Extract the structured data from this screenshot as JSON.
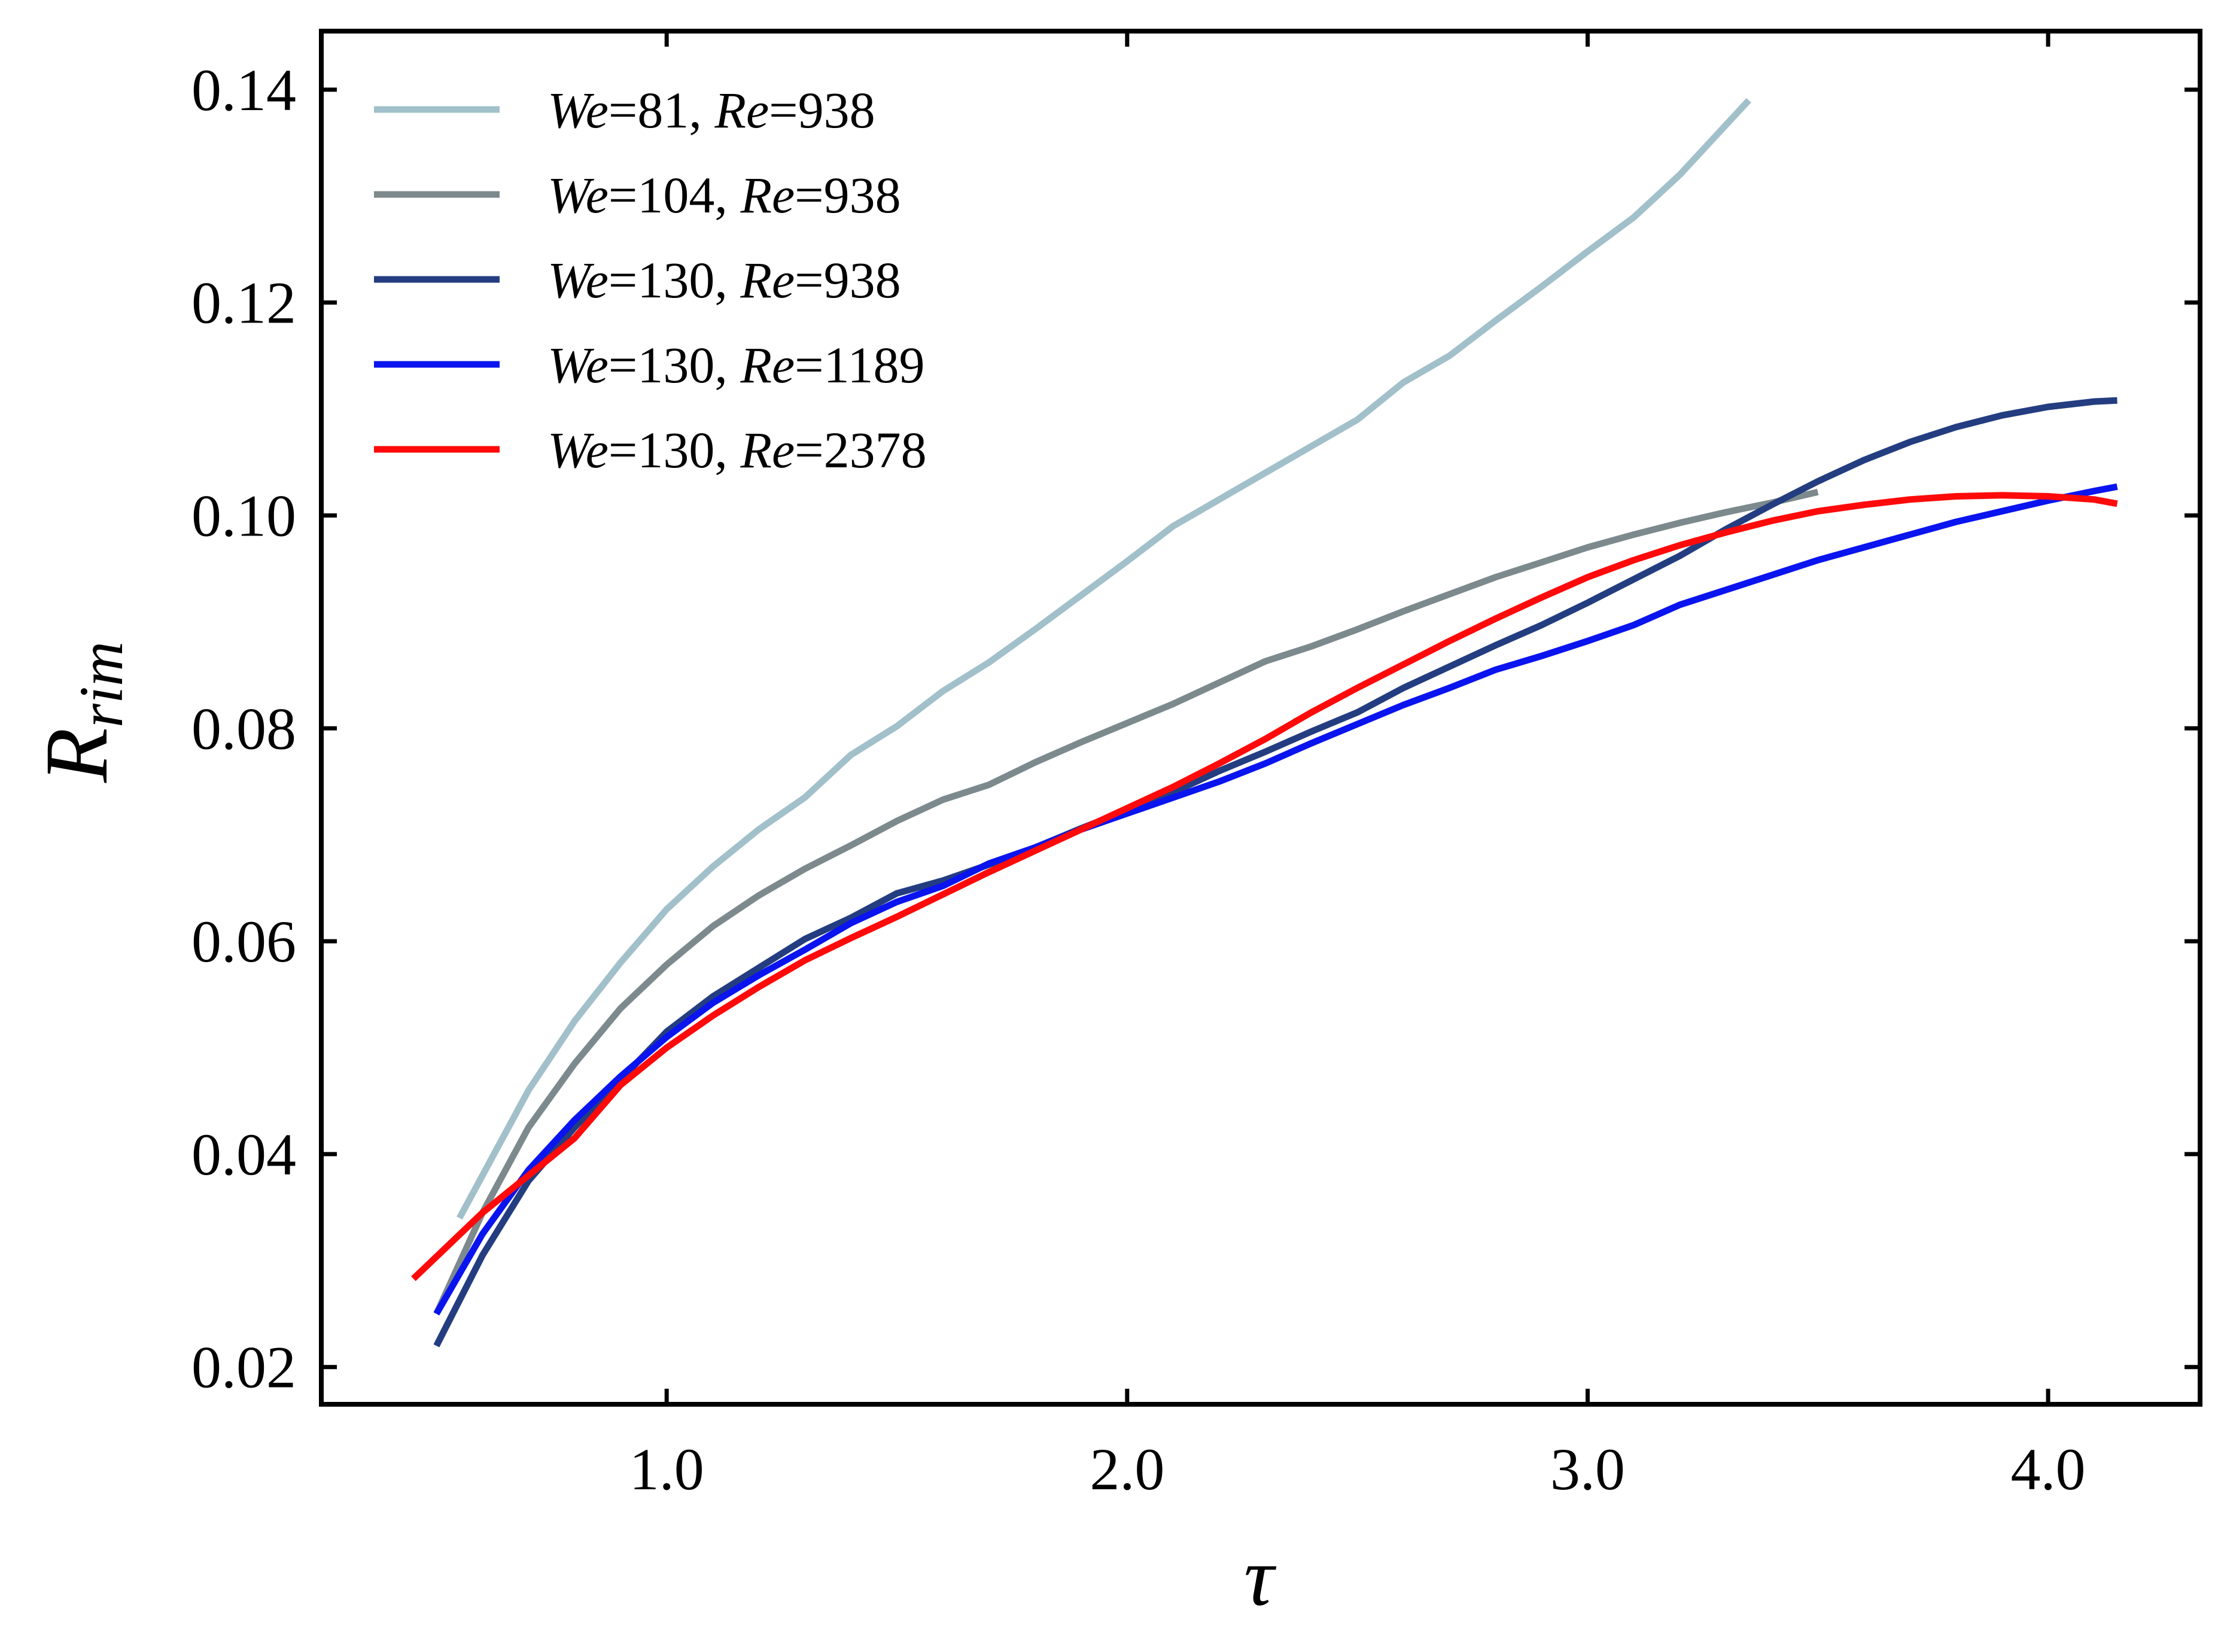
{
  "chart_data": {
    "type": "line",
    "xlabel": "τ",
    "ylabel": {
      "main": "R",
      "sub": "rim"
    },
    "xlim": [
      0.25,
      4.33
    ],
    "ylim": [
      0.0165,
      0.1455
    ],
    "xticks": [
      1.0,
      2.0,
      3.0,
      4.0
    ],
    "xtick_labels": [
      "1.0",
      "2.0",
      "3.0",
      "4.0"
    ],
    "yticks": [
      0.02,
      0.04,
      0.06,
      0.08,
      0.1,
      0.12,
      0.14
    ],
    "ytick_labels": [
      "0.02",
      "0.04",
      "0.06",
      "0.08",
      "0.10",
      "0.12",
      "0.14"
    ],
    "grid": false,
    "legend_position": "upper-left",
    "series": [
      {
        "name": "We = 81, Re = 938",
        "label_parts": {
          "we": "We",
          "we_val": "=81,",
          "re": "Re",
          "re_val": "=938"
        },
        "color": "#a2c0ca",
        "x": [
          0.55,
          0.7,
          0.8,
          0.9,
          1.0,
          1.1,
          1.2,
          1.3,
          1.4,
          1.5,
          1.6,
          1.7,
          1.8,
          1.9,
          2.0,
          2.1,
          2.2,
          2.3,
          2.4,
          2.5,
          2.6,
          2.7,
          2.8,
          2.9,
          3.0,
          3.1,
          3.2,
          3.35
        ],
        "y": [
          0.034,
          0.046,
          0.0525,
          0.058,
          0.063,
          0.067,
          0.0705,
          0.0735,
          0.0775,
          0.0802,
          0.0835,
          0.0862,
          0.0893,
          0.0925,
          0.0957,
          0.099,
          0.1015,
          0.104,
          0.1065,
          0.109,
          0.1125,
          0.115,
          0.1183,
          0.1215,
          0.1248,
          0.128,
          0.132,
          0.139
        ]
      },
      {
        "name": "We = 104, Re = 938",
        "label_parts": {
          "we": "We",
          "we_val": "=104,",
          "re": "Re",
          "re_val": "=938"
        },
        "color": "#7d8a8d",
        "x": [
          0.5,
          0.6,
          0.7,
          0.8,
          0.9,
          1.0,
          1.1,
          1.2,
          1.3,
          1.4,
          1.5,
          1.6,
          1.7,
          1.8,
          1.9,
          2.0,
          2.1,
          2.2,
          2.3,
          2.4,
          2.5,
          2.6,
          2.7,
          2.8,
          2.9,
          3.0,
          3.1,
          3.2,
          3.3,
          3.4,
          3.5
        ],
        "y": [
          0.025,
          0.0345,
          0.0425,
          0.0485,
          0.0537,
          0.0578,
          0.0614,
          0.0643,
          0.0668,
          0.069,
          0.0713,
          0.0733,
          0.0747,
          0.0768,
          0.0787,
          0.0805,
          0.0823,
          0.0843,
          0.0863,
          0.0877,
          0.0893,
          0.091,
          0.0926,
          0.0942,
          0.0956,
          0.097,
          0.0982,
          0.0993,
          0.1003,
          0.1012,
          0.1022
        ]
      },
      {
        "name": "We = 130, Re = 938",
        "label_parts": {
          "we": "We",
          "we_val": "=130,",
          "re": "Re",
          "re_val": "=938"
        },
        "color": "#233d80",
        "x": [
          0.5,
          0.6,
          0.7,
          0.8,
          0.9,
          1.0,
          1.1,
          1.2,
          1.3,
          1.4,
          1.5,
          1.6,
          1.7,
          1.8,
          1.9,
          2.0,
          2.1,
          2.2,
          2.3,
          2.4,
          2.5,
          2.6,
          2.7,
          2.8,
          2.9,
          3.0,
          3.1,
          3.2,
          3.3,
          3.4,
          3.5,
          3.6,
          3.7,
          3.8,
          3.9,
          4.0,
          4.1,
          4.15
        ],
        "y": [
          0.022,
          0.0305,
          0.0375,
          0.0425,
          0.047,
          0.0515,
          0.0548,
          0.0575,
          0.0602,
          0.0622,
          0.0645,
          0.0657,
          0.0672,
          0.0688,
          0.0706,
          0.0723,
          0.074,
          0.076,
          0.0778,
          0.0797,
          0.0815,
          0.0838,
          0.0858,
          0.0878,
          0.0897,
          0.0918,
          0.094,
          0.0962,
          0.0987,
          0.101,
          0.1032,
          0.1052,
          0.1069,
          0.1083,
          0.1094,
          0.1102,
          0.1107,
          0.1108
        ]
      },
      {
        "name": "We = 130, Re = 1189",
        "label_parts": {
          "we": "We",
          "we_val": "=130,",
          "re": "Re",
          "re_val": "=1189"
        },
        "color": "#0a14ee",
        "x": [
          0.5,
          0.6,
          0.7,
          0.8,
          0.9,
          1.0,
          1.1,
          1.2,
          1.3,
          1.4,
          1.5,
          1.6,
          1.7,
          1.8,
          1.9,
          2.0,
          2.1,
          2.2,
          2.3,
          2.4,
          2.5,
          2.6,
          2.7,
          2.8,
          2.9,
          3.0,
          3.1,
          3.2,
          3.3,
          3.4,
          3.5,
          3.6,
          3.7,
          3.8,
          3.9,
          4.0,
          4.1,
          4.15
        ],
        "y": [
          0.025,
          0.0325,
          0.0385,
          0.0432,
          0.0473,
          0.051,
          0.0542,
          0.0568,
          0.0592,
          0.0617,
          0.0637,
          0.0652,
          0.0673,
          0.0688,
          0.0705,
          0.072,
          0.0735,
          0.075,
          0.0767,
          0.0786,
          0.0804,
          0.0822,
          0.0838,
          0.0855,
          0.0868,
          0.0882,
          0.0897,
          0.0916,
          0.093,
          0.0944,
          0.0958,
          0.097,
          0.0982,
          0.0994,
          0.1004,
          0.1014,
          0.1023,
          0.1027
        ]
      },
      {
        "name": "We = 130, Re = 2378",
        "label_parts": {
          "we": "We",
          "we_val": "=130,",
          "re": "Re",
          "re_val": "=2378"
        },
        "color": "#ff0a0a",
        "x": [
          0.45,
          0.6,
          0.7,
          0.8,
          0.9,
          1.0,
          1.1,
          1.2,
          1.3,
          1.4,
          1.5,
          1.6,
          1.7,
          1.8,
          1.9,
          2.0,
          2.1,
          2.2,
          2.3,
          2.4,
          2.5,
          2.6,
          2.7,
          2.8,
          2.9,
          3.0,
          3.1,
          3.2,
          3.3,
          3.4,
          3.5,
          3.6,
          3.7,
          3.8,
          3.9,
          4.0,
          4.1,
          4.15
        ],
        "y": [
          0.0283,
          0.0345,
          0.038,
          0.0415,
          0.0465,
          0.05,
          0.053,
          0.0557,
          0.0582,
          0.0603,
          0.0623,
          0.0644,
          0.0665,
          0.0685,
          0.0705,
          0.0725,
          0.0745,
          0.0767,
          0.079,
          0.0815,
          0.0838,
          0.086,
          0.0882,
          0.0903,
          0.0923,
          0.0942,
          0.0958,
          0.0972,
          0.0984,
          0.0995,
          0.1004,
          0.101,
          0.1015,
          0.1018,
          0.1019,
          0.1018,
          0.1015,
          0.1011
        ]
      }
    ]
  }
}
